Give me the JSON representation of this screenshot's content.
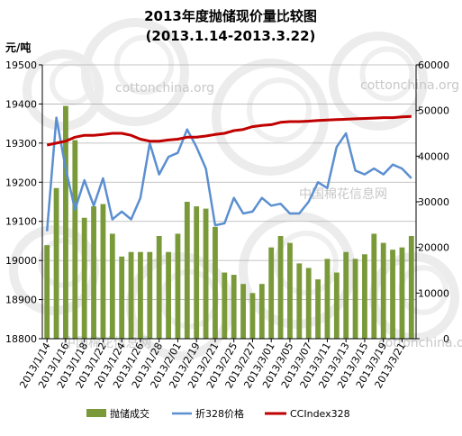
{
  "chart_data": {
    "type": "bar+line",
    "title": "2013年度抛储现价量比较图",
    "subtitle": "(2013.1.14-2013.3.22)",
    "y_left_label": "元/吨",
    "y_left_lim": [
      18800,
      19500
    ],
    "y_left_ticks": [
      18800,
      18900,
      19000,
      19100,
      19200,
      19300,
      19400,
      19500
    ],
    "y_right_lim": [
      0,
      60000
    ],
    "y_right_ticks": [
      0,
      10000,
      20000,
      30000,
      40000,
      50000,
      60000
    ],
    "x_tick_labels": [
      "2013/1/14",
      "2013/1/16",
      "2013/1/18",
      "2013/1/22",
      "2013/1/24",
      "2013/1/26",
      "2013/1/28",
      "2013/2/01",
      "2013/2/19",
      "2013/2/21",
      "2013/2/25",
      "2013/2/27",
      "2013/3/01",
      "2013/3/05",
      "2013/3/07",
      "2013/3/11",
      "2013/3/13",
      "2013/3/15",
      "2013/3/19",
      "2013/3/21"
    ],
    "grid": "horizontal",
    "legend_position": "bottom",
    "watermarks": [
      "cottonchina.org",
      "cottonchina.org",
      "中国棉花信息网",
      "中国棉花信息网",
      "cottonchina.org"
    ],
    "series": [
      {
        "name": "抛储成交",
        "type": "bar",
        "axis": "right",
        "color": "#7a9a3a",
        "values": [
          20500,
          33000,
          51000,
          43500,
          26500,
          29000,
          29500,
          23000,
          18000,
          19000,
          19000,
          19000,
          22500,
          19000,
          23000,
          30000,
          29000,
          28500,
          24500,
          14500,
          14000,
          12000,
          10000,
          12000,
          20000,
          22500,
          21000,
          16500,
          15500,
          13000,
          17500,
          14500,
          19000,
          17500,
          18500,
          23000,
          21000,
          19500,
          20000,
          22500
        ]
      },
      {
        "name": "折328价格",
        "type": "line",
        "axis": "left",
        "color": "#5b8fd0",
        "values": [
          19075,
          19365,
          19235,
          19130,
          19205,
          19140,
          19210,
          19105,
          19125,
          19105,
          19160,
          19300,
          19220,
          19265,
          19275,
          19335,
          19290,
          19235,
          19090,
          19095,
          19160,
          19120,
          19125,
          19160,
          19140,
          19145,
          19120,
          19120,
          19150,
          19200,
          19185,
          19290,
          19325,
          19230,
          19220,
          19235,
          19220,
          19245,
          19235,
          19210
        ]
      },
      {
        "name": "CCIndex328",
        "type": "line",
        "axis": "left",
        "color": "#c00000",
        "values": [
          19295,
          19300,
          19305,
          19315,
          19320,
          19320,
          19322,
          19325,
          19325,
          19320,
          19310,
          19305,
          19305,
          19308,
          19310,
          19315,
          19315,
          19318,
          19322,
          19325,
          19332,
          19335,
          19342,
          19345,
          19347,
          19353,
          19355,
          19355,
          19356,
          19358,
          19359,
          19360,
          19361,
          19362,
          19363,
          19364,
          19365,
          19365,
          19367,
          19368
        ]
      }
    ]
  }
}
